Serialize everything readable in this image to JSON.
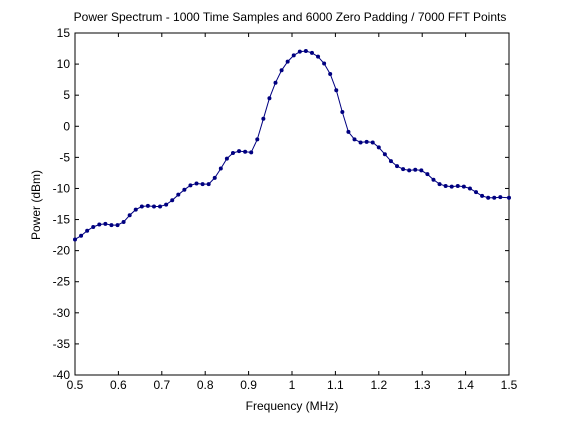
{
  "chart_data": {
    "type": "line",
    "title": "Power Spectrum - 1000 Time Samples and 6000 Zero Padding / 7000 FFT Points",
    "xlabel": "Frequency (MHz)",
    "ylabel": "Power (dBm)",
    "xlim": [
      0.5,
      1.5
    ],
    "ylim": [
      -40,
      15
    ],
    "xticks": [
      "0.5",
      "0.6",
      "0.7",
      "0.8",
      "0.9",
      "1",
      "1.1",
      "1.2",
      "1.3",
      "1.4",
      "1.5"
    ],
    "yticks": [
      "15",
      "10",
      "5",
      "0",
      "-5",
      "-10",
      "-15",
      "-20",
      "-25",
      "-30",
      "-35",
      "-40"
    ],
    "grid": false,
    "marker": "dot",
    "color": "#000080",
    "series": [
      {
        "x": [
          0.5,
          0.514,
          0.528,
          0.542,
          0.556,
          0.57,
          0.584,
          0.598,
          0.612,
          0.626,
          0.64,
          0.654,
          0.668,
          0.682,
          0.696,
          0.71,
          0.724,
          0.738,
          0.752,
          0.766,
          0.78,
          0.794,
          0.808,
          0.822,
          0.836,
          0.85,
          0.864,
          0.878,
          0.892,
          0.906,
          0.92,
          0.934,
          0.948,
          0.962,
          0.976,
          0.99,
          1.004,
          1.018,
          1.032,
          1.046,
          1.06,
          1.074,
          1.088,
          1.102,
          1.116,
          1.13,
          1.144,
          1.158,
          1.172,
          1.186,
          1.2,
          1.214,
          1.228,
          1.242,
          1.256,
          1.27,
          1.284,
          1.298,
          1.312,
          1.326,
          1.34,
          1.354,
          1.368,
          1.382,
          1.396,
          1.41,
          1.424,
          1.438,
          1.452,
          1.466,
          1.48,
          1.5
        ],
        "y": [
          -18.2,
          -17.6,
          -16.8,
          -16.2,
          -15.8,
          -15.7,
          -15.9,
          -15.9,
          -15.4,
          -14.3,
          -13.4,
          -12.9,
          -12.8,
          -12.9,
          -12.9,
          -12.6,
          -11.9,
          -11.0,
          -10.2,
          -9.5,
          -9.2,
          -9.3,
          -9.3,
          -8.3,
          -6.8,
          -5.2,
          -4.3,
          -4.0,
          -4.1,
          -4.2,
          -2.1,
          1.2,
          4.5,
          7.0,
          9.0,
          10.4,
          11.4,
          12.0,
          12.1,
          11.8,
          11.2,
          10.1,
          8.4,
          5.8,
          2.3,
          -0.9,
          -2.1,
          -2.6,
          -2.5,
          -2.6,
          -3.4,
          -4.5,
          -5.6,
          -6.4,
          -6.9,
          -7.1,
          -7.0,
          -7.1,
          -7.7,
          -8.6,
          -9.3,
          -9.6,
          -9.7,
          -9.6,
          -9.7,
          -10.0,
          -10.6,
          -11.2,
          -11.5,
          -11.5,
          -11.4,
          -11.5
        ]
      }
    ]
  }
}
